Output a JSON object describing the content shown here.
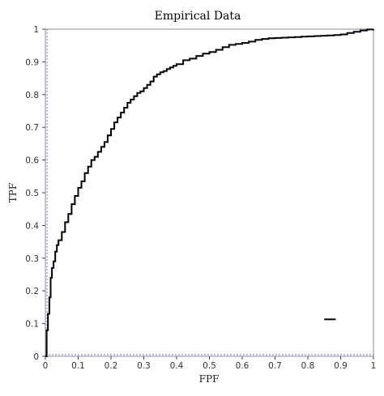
{
  "chart_data": {
    "type": "line",
    "title": "Empirical Data",
    "xlabel": "FPF",
    "ylabel": "TPF",
    "xlim": [
      0,
      1
    ],
    "ylim": [
      0,
      1
    ],
    "x_ticks": [
      "0",
      "0.1",
      "0.2",
      "0.3",
      "0.4",
      "0.5",
      "0.6",
      "0.7",
      "0.8",
      "0.9",
      "1"
    ],
    "y_ticks": [
      "0",
      "0.1",
      "0.2",
      "0.3",
      "0.4",
      "0.5",
      "0.6",
      "0.7",
      "0.8",
      "0.9",
      "1"
    ],
    "grid": false,
    "colors": {
      "curve": "#000000",
      "frame": "#8888aa",
      "dashed_edge": "#7070c0"
    },
    "series": [
      {
        "x": [
          0,
          0.004,
          0.008,
          0.012,
          0.016,
          0.02,
          0.025,
          0.03,
          0.035,
          0.04,
          0.05,
          0.06,
          0.07,
          0.08,
          0.09,
          0.1,
          0.11,
          0.12,
          0.13,
          0.14,
          0.15,
          0.16,
          0.17,
          0.18,
          0.19,
          0.2,
          0.21,
          0.22,
          0.23,
          0.24,
          0.25,
          0.26,
          0.27,
          0.28,
          0.29,
          0.3,
          0.31,
          0.32,
          0.33,
          0.34,
          0.35,
          0.36,
          0.37,
          0.38,
          0.39,
          0.4,
          0.42,
          0.44,
          0.46,
          0.48,
          0.5,
          0.52,
          0.54,
          0.56,
          0.58,
          0.6,
          0.62,
          0.64,
          0.66,
          0.68,
          0.7,
          0.72,
          0.74,
          0.76,
          0.78,
          0.8,
          0.82,
          0.84,
          0.86,
          0.88,
          0.9,
          0.92,
          0.94,
          0.96,
          0.98,
          1.0
        ],
        "y": [
          0,
          0.08,
          0.13,
          0.18,
          0.24,
          0.27,
          0.29,
          0.32,
          0.34,
          0.355,
          0.38,
          0.41,
          0.435,
          0.465,
          0.49,
          0.515,
          0.535,
          0.56,
          0.58,
          0.6,
          0.61,
          0.625,
          0.64,
          0.655,
          0.675,
          0.695,
          0.715,
          0.73,
          0.745,
          0.76,
          0.775,
          0.785,
          0.795,
          0.805,
          0.81,
          0.82,
          0.83,
          0.84,
          0.855,
          0.862,
          0.868,
          0.872,
          0.878,
          0.883,
          0.888,
          0.893,
          0.905,
          0.91,
          0.918,
          0.925,
          0.93,
          0.937,
          0.945,
          0.952,
          0.955,
          0.958,
          0.962,
          0.967,
          0.97,
          0.972,
          0.973,
          0.974,
          0.975,
          0.976,
          0.977,
          0.978,
          0.979,
          0.98,
          0.981,
          0.982,
          0.984,
          0.988,
          0.992,
          0.996,
          0.999,
          1.0
        ]
      }
    ],
    "annotations": [
      {
        "type": "segment",
        "x": [
          0.85,
          0.885
        ],
        "y": [
          0.113,
          0.113
        ]
      }
    ]
  }
}
